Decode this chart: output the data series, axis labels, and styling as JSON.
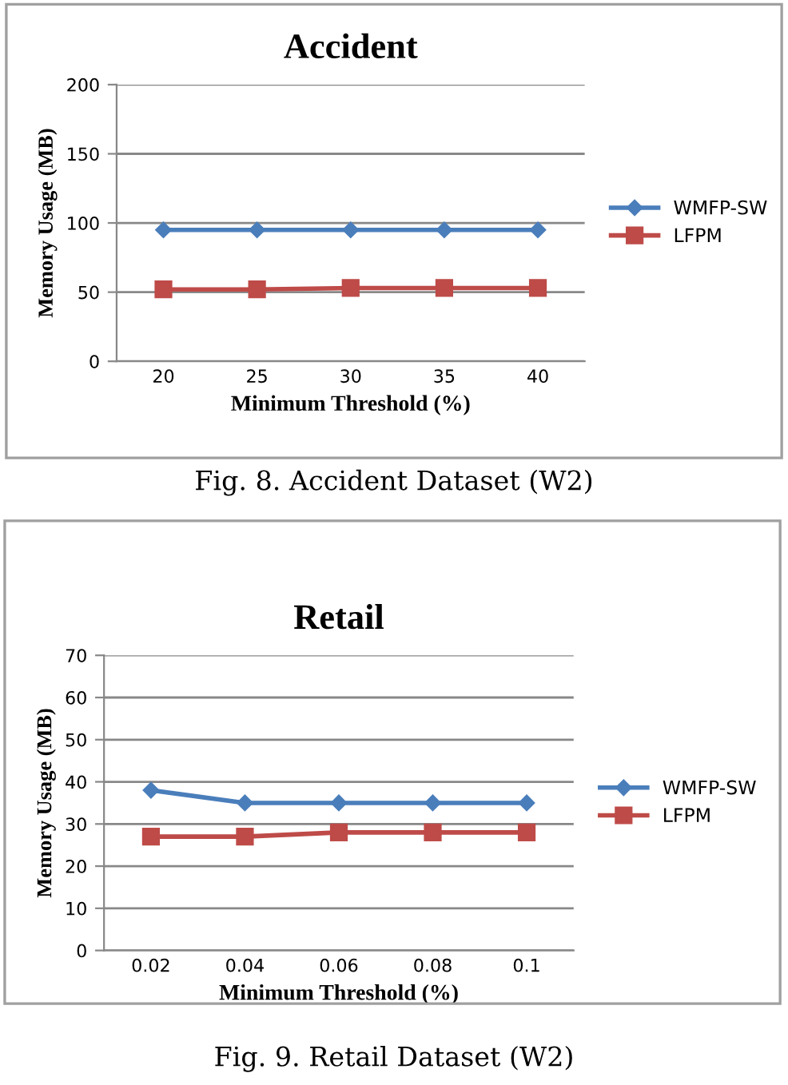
{
  "chart_data": [
    {
      "type": "line",
      "title": "Accident",
      "xlabel": "Minimum Threshold (%)",
      "ylabel": "Memory Usage (MB)",
      "categories": [
        "20",
        "25",
        "30",
        "35",
        "40"
      ],
      "series": [
        {
          "name": "WMFP-SW",
          "color": "#4a7ebb",
          "marker": "diamond",
          "values": [
            95,
            95,
            95,
            95,
            95
          ]
        },
        {
          "name": "LFPM",
          "color": "#be4b48",
          "marker": "square",
          "values": [
            52,
            52,
            53,
            53,
            53
          ]
        }
      ],
      "ylim": [
        0,
        200
      ],
      "yticks": [
        0,
        50,
        100,
        150,
        200
      ],
      "grid": "y",
      "legend": "right",
      "line_style": "solid",
      "annotations": [
        "Fig. 8. Accident Dataset (W2)"
      ]
    },
    {
      "type": "line",
      "title": "Retail",
      "xlabel": "Minimum Threshold (%)",
      "ylabel": "Memory Usage (MB)",
      "categories": [
        "0.02",
        "0.04",
        "0.06",
        "0.08",
        "0.1"
      ],
      "series": [
        {
          "name": "WMFP-SW",
          "color": "#4a7ebb",
          "marker": "diamond",
          "values": [
            38,
            35,
            35,
            35,
            35
          ]
        },
        {
          "name": "LFPM",
          "color": "#be4b48",
          "marker": "square",
          "values": [
            27,
            27,
            28,
            28,
            28
          ]
        }
      ],
      "ylim": [
        0,
        70
      ],
      "yticks": [
        0,
        10,
        20,
        30,
        40,
        50,
        60,
        70
      ],
      "grid": "y",
      "legend": "right",
      "line_style": "solid",
      "annotations": [
        "Fig. 9. Retail Dataset (W2)"
      ]
    }
  ]
}
